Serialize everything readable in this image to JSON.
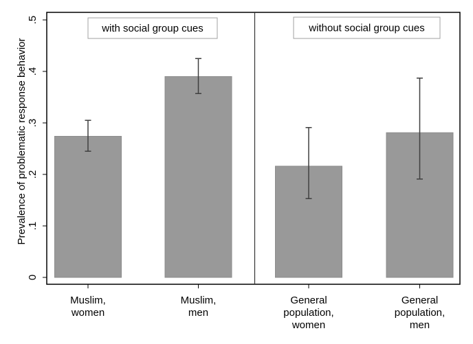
{
  "chart_data": {
    "type": "bar",
    "title": "",
    "xlabel": "",
    "ylabel": "Prevalence of problematic response behavior",
    "ylim": [
      0,
      0.5
    ],
    "yticks": [
      0,
      0.1,
      0.2,
      0.3,
      0.4,
      0.5
    ],
    "ytick_labels": [
      "0",
      ".1",
      ".2",
      ".3",
      ".4",
      ".5"
    ],
    "grid": false,
    "legend": null,
    "panels": [
      {
        "label": "with social group cues",
        "categories": [
          {
            "lines": [
              "Muslim,",
              "women"
            ],
            "value": 0.274,
            "ci_low": 0.245,
            "ci_high": 0.305
          },
          {
            "lines": [
              "Muslim,",
              "men"
            ],
            "value": 0.39,
            "ci_low": 0.357,
            "ci_high": 0.425
          }
        ]
      },
      {
        "label": "without social group cues",
        "categories": [
          {
            "lines": [
              "General",
              "population,",
              "women"
            ],
            "value": 0.216,
            "ci_low": 0.153,
            "ci_high": 0.291
          },
          {
            "lines": [
              "General",
              "population,",
              "men"
            ],
            "value": 0.281,
            "ci_low": 0.191,
            "ci_high": 0.387
          }
        ]
      }
    ],
    "colors": {
      "bar_fill": "#999999",
      "bar_edge": "#8c8c8c",
      "error_bar": "#3f3f3f",
      "axis": "#000000",
      "panel_label_border": "#a0a0a0"
    }
  }
}
